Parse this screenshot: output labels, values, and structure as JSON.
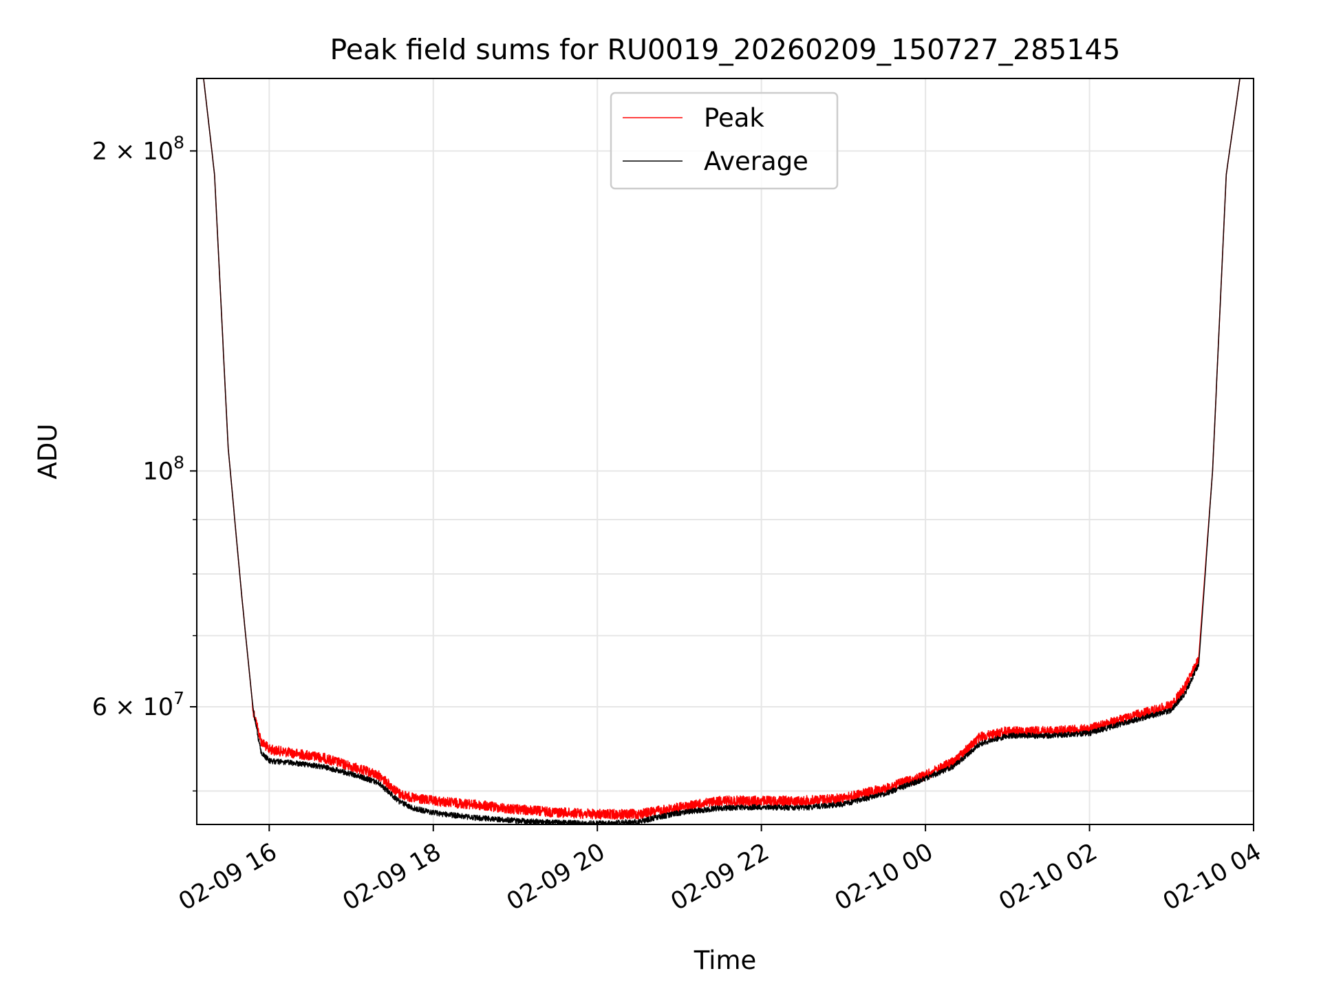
{
  "chart_data": {
    "type": "line",
    "title": "Peak field sums for RU0019_20260209_150727_285145",
    "xlabel": "Time",
    "ylabel": "ADU",
    "x_tick_labels": [
      "02-09 16",
      "02-09 18",
      "02-09 20",
      "02-09 22",
      "02-10 00",
      "02-10 02",
      "02-10 04"
    ],
    "x_ticks": [
      "2026-02-09 16:00",
      "2026-02-09 18:00",
      "2026-02-09 20:00",
      "2026-02-09 22:00",
      "2026-02-10 00:00",
      "2026-02-10 02:00",
      "2026-02-10 04:00"
    ],
    "xlim": [
      "2026-02-09 15:07",
      "2026-02-10 04:00"
    ],
    "y_scale": "log",
    "ylim": [
      46500000,
      234000000
    ],
    "y_major_ticks": [
      {
        "value": 100000000,
        "mantissa": "",
        "exponent": "8",
        "base": "10"
      },
      {
        "value": 60000000,
        "mantissa": "6",
        "exponent": "7",
        "base": "10"
      },
      {
        "value": 200000000,
        "mantissa": "2",
        "exponent": "8",
        "base": "10"
      }
    ],
    "y_minor_ticks": [
      50000000,
      70000000,
      80000000,
      90000000
    ],
    "grid": true,
    "legend_position": "top-center",
    "series": [
      {
        "name": "Peak",
        "color": "#ff0000",
        "x": [
          "2026-02-09 15:07",
          "2026-02-09 15:12",
          "2026-02-09 15:20",
          "2026-02-09 15:30",
          "2026-02-09 15:40",
          "2026-02-09 15:48",
          "2026-02-09 15:54",
          "2026-02-09 16:00",
          "2026-02-09 16:20",
          "2026-02-09 16:40",
          "2026-02-09 17:00",
          "2026-02-09 17:20",
          "2026-02-09 17:35",
          "2026-02-09 17:45",
          "2026-02-09 18:00",
          "2026-02-09 18:30",
          "2026-02-09 19:00",
          "2026-02-09 19:30",
          "2026-02-09 20:00",
          "2026-02-09 20:30",
          "2026-02-09 21:00",
          "2026-02-09 21:30",
          "2026-02-09 22:00",
          "2026-02-09 22:30",
          "2026-02-09 23:00",
          "2026-02-09 23:30",
          "2026-02-10 00:00",
          "2026-02-10 00:20",
          "2026-02-10 00:40",
          "2026-02-10 01:00",
          "2026-02-10 01:30",
          "2026-02-10 02:00",
          "2026-02-10 02:30",
          "2026-02-10 03:00",
          "2026-02-10 03:10",
          "2026-02-10 03:20",
          "2026-02-10 03:30",
          "2026-02-10 03:40",
          "2026-02-10 03:50",
          "2026-02-10 03:55"
        ],
        "values": [
          234000000,
          234000000,
          190000000,
          105000000,
          76000000,
          60000000,
          56000000,
          55000000,
          54500000,
          54000000,
          53000000,
          52000000,
          50000000,
          49500000,
          49200000,
          48800000,
          48300000,
          48000000,
          47800000,
          47800000,
          48500000,
          49200000,
          49200000,
          49200000,
          49500000,
          50500000,
          52000000,
          53500000,
          56500000,
          57200000,
          57200000,
          57500000,
          59000000,
          60500000,
          63000000,
          67000000,
          100000000,
          190000000,
          234000000,
          234000000
        ]
      },
      {
        "name": "Average",
        "color": "#000000",
        "x": [
          "2026-02-09 15:07",
          "2026-02-09 15:12",
          "2026-02-09 15:20",
          "2026-02-09 15:30",
          "2026-02-09 15:40",
          "2026-02-09 15:48",
          "2026-02-09 15:54",
          "2026-02-09 16:00",
          "2026-02-09 16:20",
          "2026-02-09 16:40",
          "2026-02-09 17:00",
          "2026-02-09 17:20",
          "2026-02-09 17:35",
          "2026-02-09 17:45",
          "2026-02-09 18:00",
          "2026-02-09 18:30",
          "2026-02-09 19:00",
          "2026-02-09 19:30",
          "2026-02-09 20:00",
          "2026-02-09 20:30",
          "2026-02-09 21:00",
          "2026-02-09 21:30",
          "2026-02-09 22:00",
          "2026-02-09 22:30",
          "2026-02-09 23:00",
          "2026-02-09 23:30",
          "2026-02-10 00:00",
          "2026-02-10 00:20",
          "2026-02-10 00:40",
          "2026-02-10 01:00",
          "2026-02-10 01:30",
          "2026-02-10 02:00",
          "2026-02-10 02:30",
          "2026-02-10 03:00",
          "2026-02-10 03:10",
          "2026-02-10 03:20",
          "2026-02-10 03:30",
          "2026-02-10 03:40",
          "2026-02-10 03:50",
          "2026-02-10 03:55"
        ],
        "values": [
          234000000,
          234000000,
          190000000,
          105000000,
          76000000,
          60000000,
          54500000,
          53500000,
          53200000,
          52800000,
          52000000,
          51000000,
          49000000,
          48300000,
          47800000,
          47300000,
          47000000,
          46800000,
          46700000,
          46900000,
          47800000,
          48300000,
          48400000,
          48300000,
          48700000,
          49800000,
          51500000,
          52800000,
          55500000,
          56500000,
          56500000,
          56800000,
          58300000,
          59700000,
          62000000,
          66000000,
          100000000,
          190000000,
          234000000,
          234000000
        ]
      }
    ]
  }
}
